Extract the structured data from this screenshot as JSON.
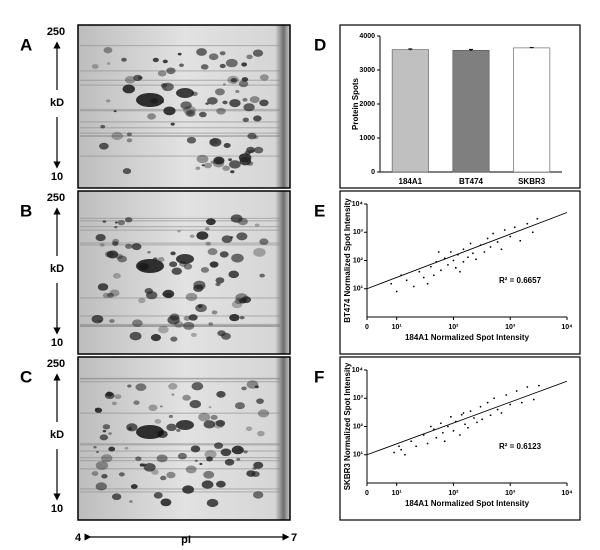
{
  "figure": {
    "panel_labels": [
      "A",
      "B",
      "C",
      "D",
      "E",
      "F"
    ],
    "gel_axis": {
      "top": "250",
      "unit": "kD",
      "bottom": "10"
    },
    "pi_axis": {
      "left": "4",
      "label": "pI",
      "right": "7"
    }
  },
  "chart_data": [
    {
      "type": "bar",
      "y_label": "Protein Spots",
      "categories": [
        "184A1",
        "BT474",
        "SKBR3"
      ],
      "values": [
        3600,
        3580,
        3650
      ],
      "errors": [
        20,
        25,
        10
      ],
      "colors": [
        "#c0c0c0",
        "#7f7f7f",
        "#ffffff"
      ],
      "ylim": [
        0,
        4000
      ],
      "yticks": [
        0,
        1000,
        2000,
        3000,
        4000
      ]
    },
    {
      "type": "scatter",
      "x_label": "184A1 Normalized Spot Intensity",
      "y_label": "BT474 Normalized Spot Intensity",
      "annotation": "R² = 0.6657",
      "log_scale": true,
      "color": "#000000",
      "xlim": [
        3,
        10000
      ],
      "ylim": [
        1,
        10000
      ],
      "xticks": [
        {
          "value": 3,
          "label": "0"
        },
        {
          "value": 10,
          "label": "10¹"
        },
        {
          "value": 100,
          "label": "10²"
        },
        {
          "value": 1000,
          "label": "10³"
        },
        {
          "value": 10000,
          "label": "10⁴"
        }
      ],
      "yticks": [
        {
          "value": 10,
          "label": "10¹"
        },
        {
          "value": 100,
          "label": "10²"
        },
        {
          "value": 1000,
          "label": "10³"
        },
        {
          "value": 10000,
          "label": "10⁴"
        }
      ],
      "x": [
        15,
        20,
        25,
        30,
        40,
        45,
        50,
        60,
        70,
        80,
        90,
        100,
        110,
        120,
        150,
        150,
        180,
        200,
        220,
        250,
        300,
        350,
        400,
        450,
        500,
        600,
        700,
        800,
        1000,
        1200,
        1500,
        2000,
        2500,
        3000,
        8,
        10,
        12,
        35,
        55,
        130
      ],
      "y": [
        20,
        12,
        40,
        25,
        60,
        30,
        90,
        45,
        120,
        70,
        200,
        100,
        55,
        160,
        250,
        90,
        130,
        400,
        180,
        110,
        350,
        200,
        600,
        300,
        900,
        450,
        250,
        1200,
        700,
        1500,
        500,
        2000,
        1000,
        3000,
        15,
        8,
        30,
        15,
        200,
        40
      ],
      "fit": {
        "x": [
          3,
          10000
        ],
        "y": [
          10,
          5000
        ]
      }
    },
    {
      "type": "scatter",
      "x_label": "184A1 Normalized Spot Intensity",
      "y_label": "SKBR3 Normalized Spot Intensity",
      "annotation": "R² = 0.6123",
      "log_scale": true,
      "color": "#000000",
      "xlim": [
        3,
        10000
      ],
      "ylim": [
        1,
        10000
      ],
      "xticks": [
        {
          "value": 3,
          "label": "0"
        },
        {
          "value": 10,
          "label": "10¹"
        },
        {
          "value": 100,
          "label": "10²"
        },
        {
          "value": 1000,
          "label": "10³"
        },
        {
          "value": 10000,
          "label": "10⁴"
        }
      ],
      "yticks": [
        {
          "value": 10,
          "label": "10¹"
        },
        {
          "value": 100,
          "label": "10²"
        },
        {
          "value": 1000,
          "label": "10³"
        },
        {
          "value": 10000,
          "label": "10⁴"
        }
      ],
      "x": [
        12,
        18,
        22,
        30,
        35,
        45,
        50,
        60,
        65,
        80,
        90,
        100,
        110,
        130,
        150,
        160,
        180,
        200,
        230,
        260,
        300,
        320,
        400,
        450,
        520,
        600,
        700,
        850,
        1000,
        1300,
        1600,
        2000,
        2600,
        3200,
        9,
        11,
        14,
        40,
        70,
        140
      ],
      "y": [
        15,
        30,
        20,
        50,
        25,
        80,
        40,
        130,
        60,
        100,
        220,
        70,
        150,
        50,
        300,
        120,
        90,
        350,
        200,
        140,
        500,
        180,
        700,
        250,
        1000,
        400,
        300,
        1300,
        600,
        1800,
        700,
        2500,
        900,
        2800,
        12,
        20,
        10,
        100,
        30,
        260
      ],
      "fit": {
        "x": [
          3,
          10000
        ],
        "y": [
          10,
          4000
        ]
      }
    }
  ]
}
